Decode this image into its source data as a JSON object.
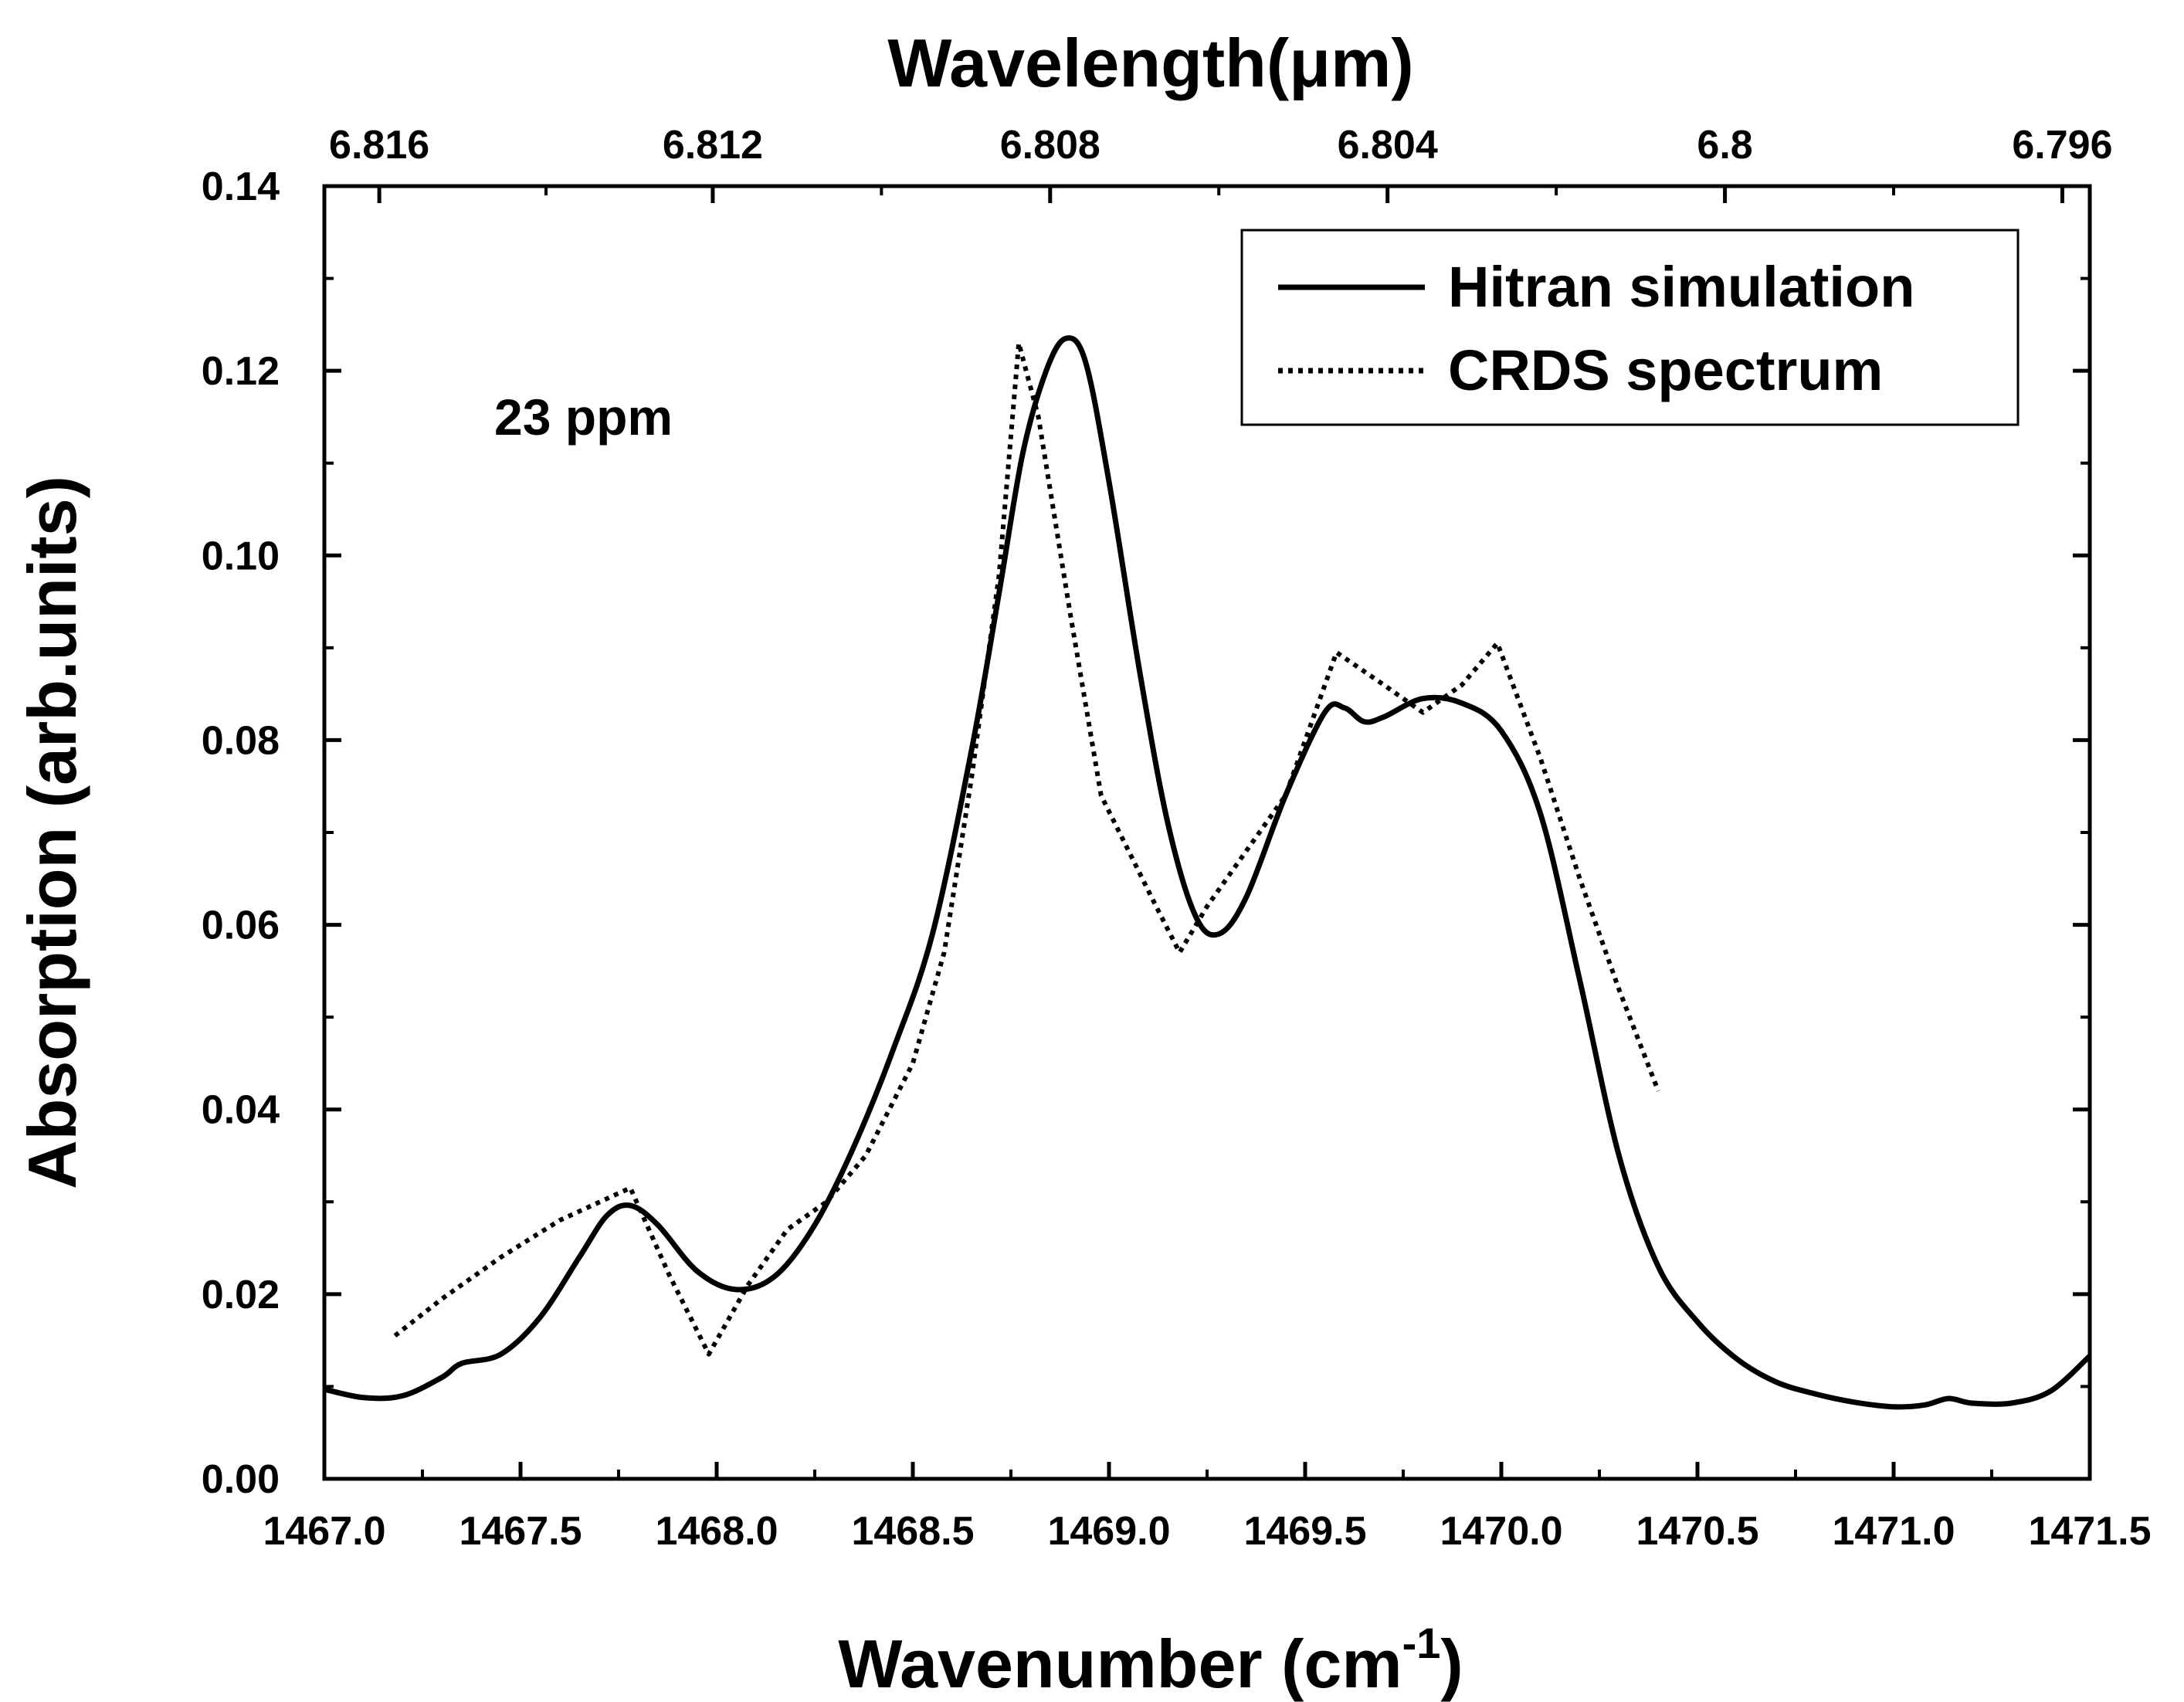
{
  "chart_data": {
    "type": "line",
    "title": "",
    "xlabel": "Wavenumber (cm",
    "xlabel_sup": "-1",
    "xlabel_suffix": ")",
    "ylabel": "Absorption (arb.units)",
    "top_axis_label": "Wavelength(μm)",
    "xlim": [
      1467.0,
      1471.5
    ],
    "ylim": [
      0.0,
      0.14
    ],
    "x_ticks": [
      1467.0,
      1467.5,
      1468.0,
      1468.5,
      1469.0,
      1469.5,
      1470.0,
      1470.5,
      1471.0,
      1471.5
    ],
    "x_tick_labels": [
      "1467.0",
      "1467.5",
      "1468.0",
      "1468.5",
      "1469.0",
      "1469.5",
      "1470.0",
      "1470.5",
      "1471.0",
      "1471.5"
    ],
    "y_ticks": [
      0.0,
      0.02,
      0.04,
      0.06,
      0.08,
      0.1,
      0.12,
      0.14
    ],
    "y_tick_labels": [
      "0.00",
      "0.02",
      "0.04",
      "0.06",
      "0.08",
      "0.10",
      "0.12",
      "0.14"
    ],
    "top_ticks": [
      {
        "label": "6.816",
        "wavenumber": 1467.14
      },
      {
        "label": "6.812",
        "wavenumber": 1467.99
      },
      {
        "label": "6.808",
        "wavenumber": 1468.85
      },
      {
        "label": "6.804",
        "wavenumber": 1469.71
      },
      {
        "label": "6.8",
        "wavenumber": 1470.57
      },
      {
        "label": "6.796",
        "wavenumber": 1471.43
      }
    ],
    "annotation": "23 ppm",
    "legend_position": "top-right",
    "series": [
      {
        "name": "Hitran simulation",
        "style": "solid",
        "x": [
          1467.0,
          1467.1,
          1467.2,
          1467.3,
          1467.35,
          1467.45,
          1467.55,
          1467.65,
          1467.72,
          1467.78,
          1467.85,
          1467.95,
          1468.05,
          1468.15,
          1468.25,
          1468.35,
          1468.45,
          1468.55,
          1468.65,
          1468.72,
          1468.78,
          1468.84,
          1468.89,
          1468.94,
          1469.0,
          1469.08,
          1469.15,
          1469.22,
          1469.28,
          1469.35,
          1469.45,
          1469.55,
          1469.6,
          1469.65,
          1469.7,
          1469.8,
          1469.9,
          1470.0,
          1470.1,
          1470.2,
          1470.3,
          1470.4,
          1470.5,
          1470.6,
          1470.7,
          1470.8,
          1470.9,
          1471.0,
          1471.08,
          1471.14,
          1471.2,
          1471.3,
          1471.4,
          1471.5
        ],
        "y": [
          0.0097,
          0.0088,
          0.009,
          0.011,
          0.0125,
          0.0135,
          0.0175,
          0.024,
          0.0285,
          0.0296,
          0.0275,
          0.0225,
          0.0205,
          0.022,
          0.0275,
          0.036,
          0.0465,
          0.059,
          0.079,
          0.096,
          0.111,
          0.12,
          0.1235,
          0.121,
          0.108,
          0.087,
          0.071,
          0.061,
          0.059,
          0.063,
          0.074,
          0.083,
          0.0835,
          0.082,
          0.0825,
          0.0845,
          0.084,
          0.081,
          0.072,
          0.054,
          0.035,
          0.023,
          0.017,
          0.013,
          0.0105,
          0.0092,
          0.0083,
          0.0078,
          0.008,
          0.0087,
          0.0082,
          0.0082,
          0.0095,
          0.0133
        ]
      },
      {
        "name": "CRDS spectrum",
        "style": "dotted",
        "x": [
          1467.18,
          1467.3,
          1467.45,
          1467.6,
          1467.78,
          1467.88,
          1467.98,
          1468.08,
          1468.18,
          1468.28,
          1468.38,
          1468.5,
          1468.58,
          1468.65,
          1468.72,
          1468.77,
          1468.82,
          1468.9,
          1468.98,
          1469.05,
          1469.12,
          1469.18,
          1469.25,
          1469.35,
          1469.45,
          1469.58,
          1469.7,
          1469.8,
          1469.9,
          1469.99,
          1470.1,
          1470.2,
          1470.3,
          1470.4
        ],
        "y": [
          0.0155,
          0.0195,
          0.024,
          0.028,
          0.0315,
          0.022,
          0.0135,
          0.021,
          0.027,
          0.03,
          0.035,
          0.045,
          0.057,
          0.076,
          0.098,
          0.123,
          0.115,
          0.094,
          0.074,
          0.068,
          0.062,
          0.057,
          0.062,
          0.068,
          0.074,
          0.0895,
          0.086,
          0.083,
          0.086,
          0.0905,
          0.078,
          0.065,
          0.053,
          0.042
        ]
      }
    ]
  }
}
